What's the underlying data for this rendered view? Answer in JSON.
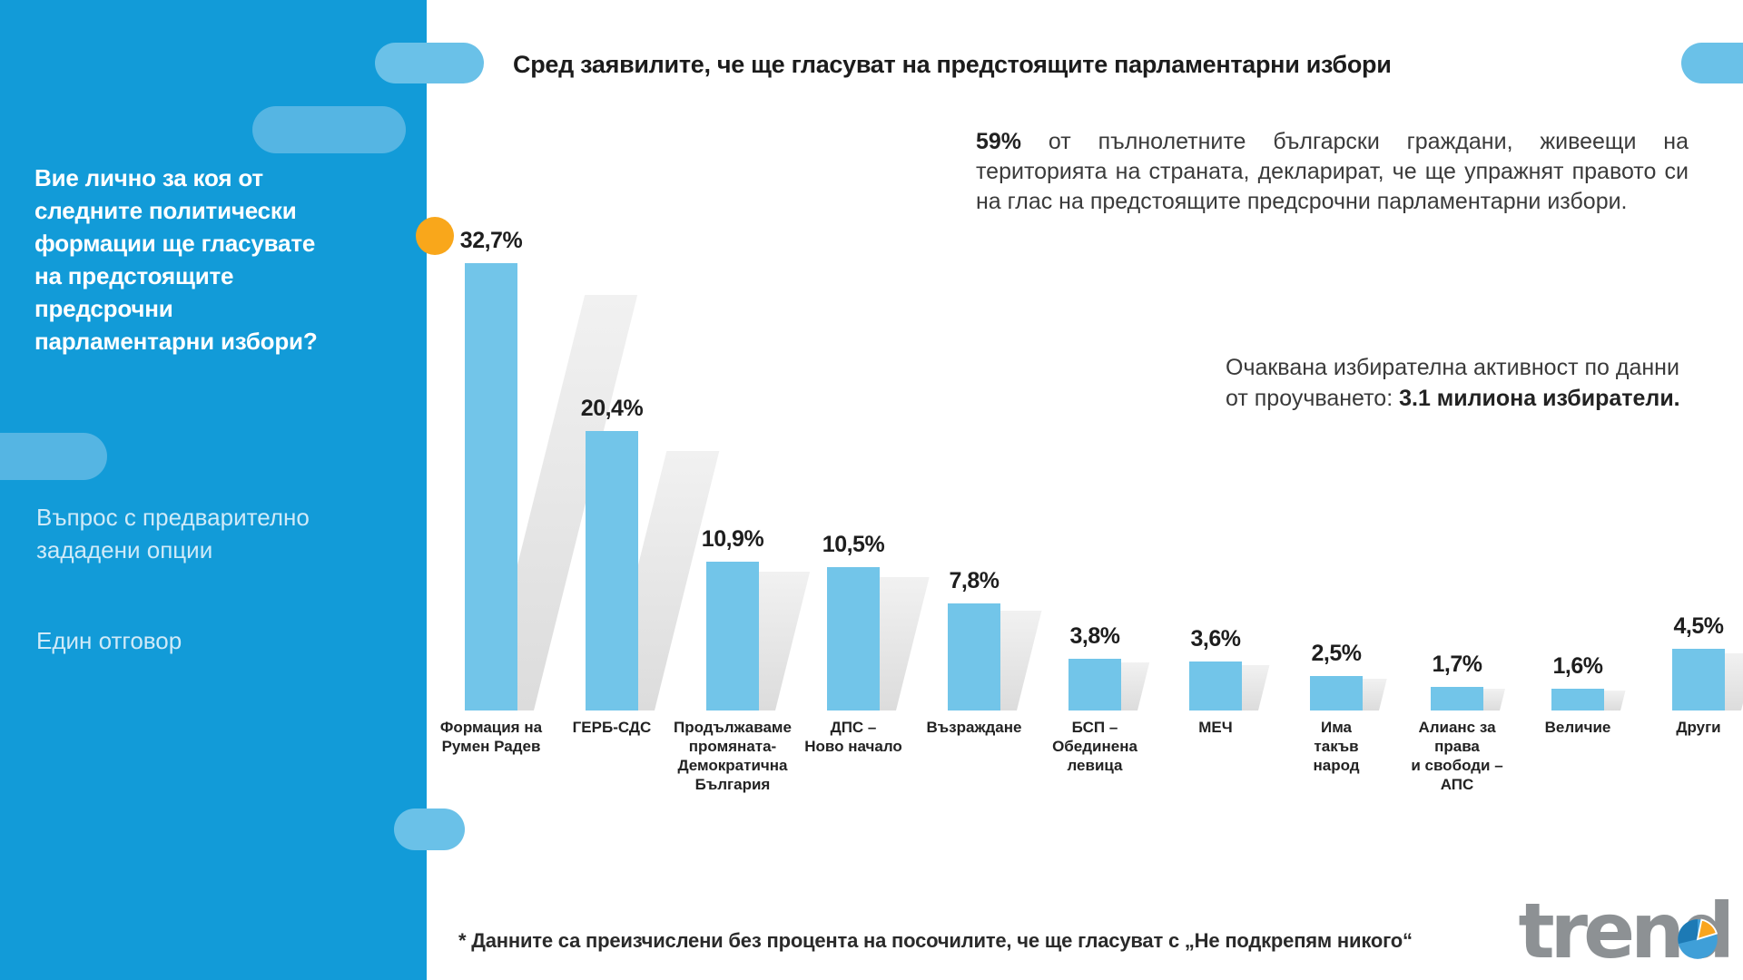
{
  "header": {
    "title": "Сред заявилите, че ще гласуват на предстоящите парламентарни избори"
  },
  "sidebar": {
    "question": "Вие лично за коя от следните политически формации ще гласувате на предстоящите предсрочни парламентарни избори?",
    "note1": "Въпрос с предварително зададени опции",
    "note2": "Един отговор"
  },
  "info": {
    "stat_bold": "59%",
    "stat_rest": " от пълнолетните български граждани, живеещи на територията на страната, декларират, че ще упражнят правото си на глас на предстоящите предсрочни парламентарни избори.",
    "turnout_prefix": "Очаквана избирателна активност по данни от проучването: ",
    "turnout_bold": "3.1 милиона избиратели."
  },
  "footnote": "* Данните са преизчислени без процента на посочилите, че ще гласуват с „Не подкрепям никого“",
  "logo": {
    "text": "trend"
  },
  "colors": {
    "sidebar_blue": "#129bd8",
    "pill_light_blue": "#6ac1e8",
    "bar_blue": "#72c5e9",
    "accent_orange": "#f9a71b",
    "logo_gray": "#8d9194"
  },
  "chart_data": {
    "type": "bar",
    "title": "Сред заявилите, че ще гласуват на предстоящите парламентарни избори",
    "xlabel": "",
    "ylabel": "",
    "ylim": [
      0,
      35
    ],
    "grid": false,
    "legend": "none",
    "bar_color": "#72c5e9",
    "categories": [
      "Формация на Румен Радев",
      "ГЕРБ-СДС",
      "Продължаваме промяната-Демократична България",
      "ДПС – Ново начало",
      "Възраждане",
      "БСП – Обединена левица",
      "МЕЧ",
      "Има такъв народ",
      "Алианс за права и свободи – АПС",
      "Величие",
      "Други"
    ],
    "categories_lines": [
      [
        "Формация на",
        "Румен Радев"
      ],
      [
        "ГЕРБ-СДС"
      ],
      [
        "Продължаваме",
        "промяната-",
        "Демократична",
        "България"
      ],
      [
        "ДПС –",
        "Ново начало"
      ],
      [
        "Възраждане"
      ],
      [
        "БСП –",
        "Обединена",
        "левица"
      ],
      [
        "МЕЧ"
      ],
      [
        "Има",
        "такъв",
        "народ"
      ],
      [
        "Алианс за",
        "права",
        "и свободи –",
        "АПС"
      ],
      [
        "Величие"
      ],
      [
        "Други"
      ]
    ],
    "values": [
      32.7,
      20.4,
      10.9,
      10.5,
      7.8,
      3.8,
      3.6,
      2.5,
      1.7,
      1.6,
      4.5
    ],
    "value_labels": [
      "32,7%",
      "20,4%",
      "10,9%",
      "10,5%",
      "7,8%",
      "3,8%",
      "3,6%",
      "2,5%",
      "1,7%",
      "1,6%",
      "4,5%"
    ],
    "annotations": [
      "59% от пълнолетните български граждани, живеещи на територията на страната, декларират, че ще упражнят правото си на глас на предстоящите предсрочни парламентарни избори.",
      "Очаквана избирателна активност по данни от проучването: 3.1 милиона избиратели."
    ]
  }
}
